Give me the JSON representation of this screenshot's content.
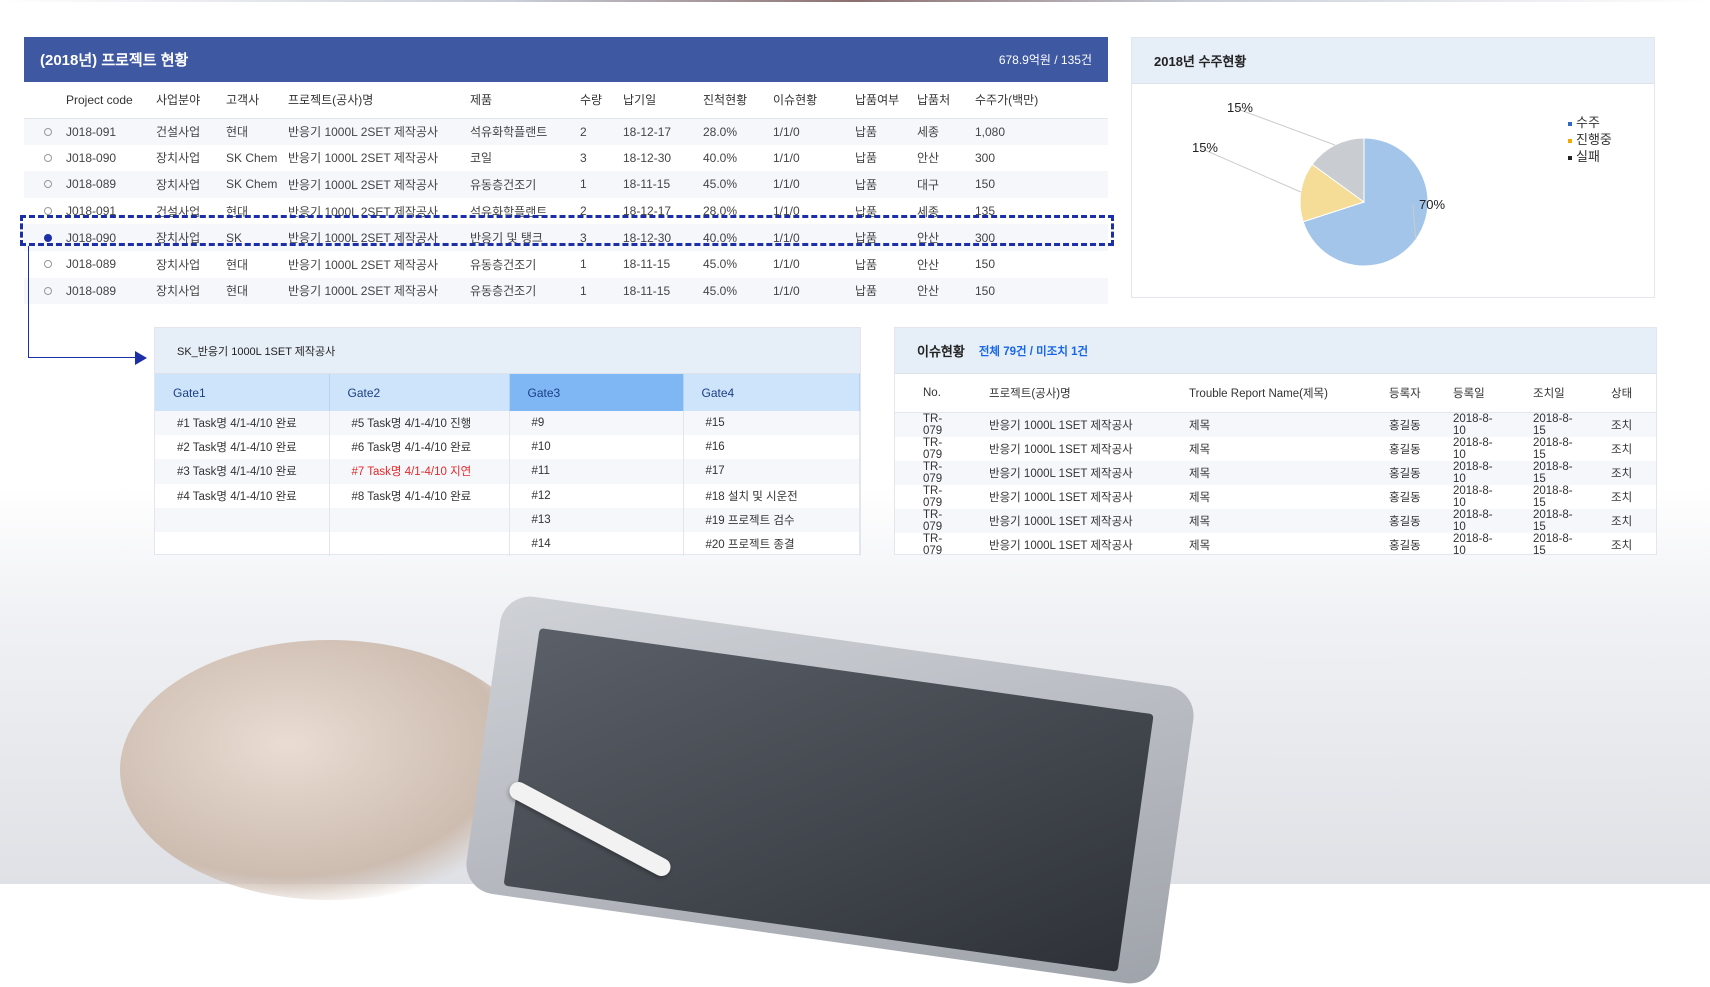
{
  "main": {
    "title": "(2018년) 프로젝트 현황",
    "summary": "678.9억원 / 135건",
    "columns": [
      "",
      "Project code",
      "사업분야",
      "고객사",
      "프로젝트(공사)명",
      "제품",
      "수량",
      "납기일",
      "진척현황",
      "이슈현황",
      "납품여부",
      "납품처",
      "수주가(백만)"
    ],
    "rows": [
      {
        "selected": false,
        "cells": [
          "J018-091",
          "건설사업",
          "현대",
          "반응기 1000L 2SET 제작공사",
          "석유화학플랜트",
          "2",
          "18-12-17",
          "28.0%",
          "1/1/0",
          "납품",
          "세종",
          "1,080"
        ]
      },
      {
        "selected": false,
        "cells": [
          "J018-090",
          "장치사업",
          "SK Chem",
          "반응기 1000L 2SET 제작공사",
          "코일",
          "3",
          "18-12-30",
          "40.0%",
          "1/1/0",
          "납품",
          "안산",
          "300"
        ]
      },
      {
        "selected": false,
        "cells": [
          "J018-089",
          "장치사업",
          "SK Chem",
          "반응기 1000L 2SET 제작공사",
          "유동층건조기",
          "1",
          "18-11-15",
          "45.0%",
          "1/1/0",
          "납품",
          "대구",
          "150"
        ]
      },
      {
        "selected": false,
        "cells": [
          "J018-091",
          "건설사업",
          "현대",
          "반응기 1000L 2SET 제작공사",
          "석유화학플랜트",
          "2",
          "18-12-17",
          "28.0%",
          "1/1/0",
          "납품",
          "세종",
          "135"
        ]
      },
      {
        "selected": true,
        "cells": [
          "J018-090",
          "장치사업",
          "SK",
          "반응기 1000L 2SET 제작공사",
          "반응기 및 탱크",
          "3",
          "18-12-30",
          "40.0%",
          "1/1/0",
          "납품",
          "안산",
          "300"
        ]
      },
      {
        "selected": false,
        "cells": [
          "J018-089",
          "장치사업",
          "현대",
          "반응기 1000L 2SET 제작공사",
          "유동층건조기",
          "1",
          "18-11-15",
          "45.0%",
          "1/1/0",
          "납품",
          "안산",
          "150"
        ]
      },
      {
        "selected": false,
        "cells": [
          "J018-089",
          "장치사업",
          "현대",
          "반응기 1000L 2SET 제작공사",
          "유동층건조기",
          "1",
          "18-11-15",
          "45.0%",
          "1/1/0",
          "납품",
          "안산",
          "150"
        ]
      }
    ]
  },
  "chart_data": {
    "type": "pie",
    "title": "2018년 수주현황",
    "legend_position": "top-right",
    "slices": [
      {
        "name": "수주",
        "value": 70,
        "label": "70%",
        "color": "#a3c5ea",
        "legend_color": "#2d6bc4"
      },
      {
        "name": "진행중",
        "value": 15,
        "label": "15%",
        "color": "#f5dd98",
        "legend_color": "#f5a800"
      },
      {
        "name": "실패",
        "value": 15,
        "label": "15%",
        "color": "#c9cdd1",
        "legend_color": "#222222"
      }
    ]
  },
  "gate": {
    "title": "SK_반응기 1000L 1SET 제작공사",
    "columns": [
      "Gate1",
      "Gate2",
      "Gate3",
      "Gate4"
    ],
    "active": "Gate3",
    "rows": [
      [
        "#1 Task명 4/1-4/10 완료",
        "#5 Task명 4/1-4/10 진행",
        "#9",
        "#15"
      ],
      [
        "#2 Task명 4/1-4/10 완료",
        "#6 Task명 4/1-4/10 완료",
        "#10",
        "#16"
      ],
      [
        "#3 Task명 4/1-4/10 완료",
        "#7 Task명 4/1-4/10 지연",
        "#11",
        "#17"
      ],
      [
        "#4 Task명 4/1-4/10 완료",
        "#8 Task명 4/1-4/10 완료",
        "#12",
        "#18  설치 및 시운전"
      ],
      [
        "",
        "",
        "#13",
        "#19  프로젝트 검수"
      ],
      [
        "",
        "",
        "#14",
        "#20  프로젝트 종결"
      ]
    ],
    "delayed_color": "#e52a2a"
  },
  "issue": {
    "title": "이슈현황",
    "subtitle": "전체 79건 /  미조치 1건",
    "columns": [
      "No.",
      "프로젝트(공사)명",
      "Trouble Report Name(제목)",
      "등록자",
      "등록일",
      "조치일",
      "상태"
    ],
    "rows": [
      [
        "TR-079",
        "반응기 1000L 1SET 제작공사",
        "제목",
        "홍길동",
        "2018-8-10",
        "2018-8-15",
        "조치"
      ],
      [
        "TR-079",
        "반응기 1000L 1SET 제작공사",
        "제목",
        "홍길동",
        "2018-8-10",
        "2018-8-15",
        "조치"
      ],
      [
        "TR-079",
        "반응기 1000L 1SET 제작공사",
        "제목",
        "홍길동",
        "2018-8-10",
        "2018-8-15",
        "조치"
      ],
      [
        "TR-079",
        "반응기 1000L 1SET 제작공사",
        "제목",
        "홍길동",
        "2018-8-10",
        "2018-8-15",
        "조치"
      ],
      [
        "TR-079",
        "반응기 1000L 1SET 제작공사",
        "제목",
        "홍길동",
        "2018-8-10",
        "2018-8-15",
        "조치"
      ],
      [
        "TR-079",
        "반응기 1000L 1SET 제작공사",
        "제목",
        "홍길동",
        "2018-8-10",
        "2018-8-15",
        "조치"
      ]
    ]
  }
}
